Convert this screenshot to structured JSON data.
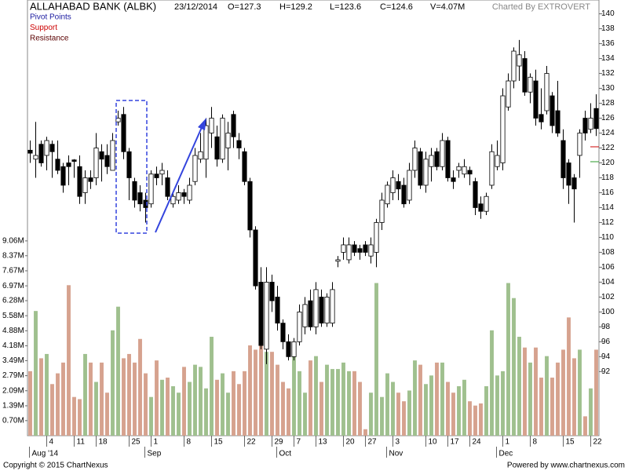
{
  "chart_data": {
    "type": "candlestick",
    "title": "ALLAHABAD BANK (ALBK)",
    "date": "23/12/2014",
    "stats": [
      "O=127.3",
      "H=129.2",
      "L=123.6",
      "C=124.6",
      "V=4.07M"
    ],
    "credit": "Charted By EXTROVERT",
    "legend": [
      {
        "name": "Pivot Points",
        "color": "#1a1aa0"
      },
      {
        "name": "Support",
        "color": "#cc0000"
      },
      {
        "name": "Resistance",
        "color": "#5a0000"
      }
    ],
    "categories": [
      null,
      null,
      null,
      "4",
      null,
      null,
      null,
      null,
      "11",
      null,
      null,
      null,
      "18",
      null,
      null,
      null,
      null,
      null,
      "25",
      null,
      null,
      null,
      "1",
      null,
      null,
      null,
      null,
      null,
      "8",
      null,
      null,
      null,
      null,
      "15",
      null,
      null,
      null,
      null,
      null,
      "22",
      null,
      null,
      null,
      null,
      "29",
      null,
      null,
      null,
      "7",
      null,
      null,
      null,
      "13",
      null,
      null,
      null,
      null,
      "20",
      null,
      null,
      null,
      "27",
      null,
      null,
      null,
      null,
      "3",
      null,
      null,
      null,
      null,
      null,
      "10",
      null,
      null,
      null,
      "17",
      null,
      null,
      null,
      "24",
      null,
      null,
      null,
      null,
      null,
      "1",
      null,
      null,
      null,
      null,
      "8",
      null,
      null,
      null,
      null,
      null,
      "15",
      null,
      null,
      null,
      null,
      "22",
      null
    ],
    "months": [
      null,
      "Aug '14",
      null,
      null,
      null,
      null,
      null,
      null,
      null,
      null,
      null,
      null,
      null,
      null,
      null,
      null,
      null,
      null,
      null,
      null,
      null,
      null,
      "Sep",
      null,
      null,
      null,
      null,
      null,
      null,
      null,
      null,
      null,
      null,
      null,
      null,
      null,
      null,
      null,
      null,
      null,
      null,
      null,
      null,
      null,
      null,
      null,
      "Oct",
      null,
      null,
      null,
      null,
      null,
      null,
      null,
      null,
      null,
      null,
      null,
      null,
      null,
      null,
      null,
      null,
      null,
      null,
      null,
      "Nov",
      null,
      null,
      null,
      null,
      null,
      null,
      null,
      null,
      null,
      null,
      null,
      null,
      null,
      null,
      null,
      null,
      null,
      null,
      null,
      "Dec",
      null,
      null,
      null,
      null,
      null,
      null,
      null,
      null,
      null,
      null,
      null,
      null,
      null,
      null,
      null,
      null,
      null
    ],
    "open": [
      121.7,
      120.5,
      122.5,
      121,
      122.5,
      120.5,
      119.5,
      120,
      120.4,
      119.5,
      116,
      118,
      118,
      121.5,
      121,
      119,
      125.5,
      126.5,
      121.5,
      117.5,
      116,
      115,
      114.5,
      118.5,
      118.5,
      118,
      114.5,
      115,
      116,
      115,
      117.5,
      120.5,
      120.5,
      124,
      123.5,
      120.5,
      122,
      126.5,
      123,
      121.5,
      117.5,
      111,
      104,
      95,
      104,
      102,
      98.5,
      96,
      94,
      96,
      98,
      101.5,
      98,
      102,
      98.5,
      98.5,
      106.8,
      108,
      107,
      109,
      108.5,
      109,
      107.5,
      108,
      112,
      114.5,
      116,
      117.5,
      117,
      115,
      119,
      121.5,
      117,
      119.5,
      121.5,
      119.5,
      123,
      118,
      119,
      118.5,
      119,
      117.5,
      114.5,
      113.5,
      117,
      119.5,
      120,
      127.5,
      131,
      133,
      134,
      129.5,
      131,
      126.5,
      127,
      129,
      127,
      123,
      120,
      118,
      121,
      126,
      124.5,
      127.3
    ],
    "high": [
      123,
      125.5,
      123,
      123.5,
      123,
      123,
      120,
      121,
      120.5,
      121,
      119,
      119,
      124,
      122.5,
      122.5,
      124,
      127,
      127.5,
      122,
      118,
      117,
      116,
      119,
      119.5,
      120,
      119,
      116,
      117,
      116.5,
      118,
      122,
      124,
      126,
      127.5,
      125,
      126.5,
      125.5,
      127,
      124,
      122,
      118,
      111.5,
      106,
      106,
      105,
      103.5,
      99,
      97,
      96.5,
      101,
      102,
      103,
      104,
      103,
      102.5,
      104,
      107.5,
      110,
      110,
      109.5,
      109,
      109.5,
      110,
      112.5,
      116,
      117.5,
      119,
      118.5,
      118,
      120,
      123,
      122,
      121.5,
      122,
      122,
      124,
      123.5,
      119,
      120,
      120.5,
      119.5,
      118,
      115.5,
      116,
      122.5,
      123,
      130,
      132,
      135.5,
      136.5,
      135,
      132,
      132.5,
      130,
      133,
      129.5,
      131,
      124.5,
      120.5,
      118.5,
      124.5,
      127,
      128,
      129.2
    ],
    "low": [
      120,
      118,
      119.5,
      119,
      118,
      118.5,
      116,
      117,
      118,
      114.5,
      114.5,
      116.5,
      117,
      117.5,
      118.5,
      119,
      125,
      120.5,
      115,
      114,
      113.5,
      112,
      114,
      117,
      117,
      115,
      114,
      114.5,
      114.5,
      114.5,
      117,
      120,
      118,
      122,
      119.5,
      120,
      119,
      122,
      120.5,
      117,
      110,
      103,
      95,
      93,
      100,
      97.5,
      95,
      93.5,
      93.5,
      95.5,
      97,
      97.5,
      97,
      98,
      98,
      98,
      106,
      107,
      106.5,
      107.5,
      107,
      107.5,
      106.5,
      106,
      111,
      114,
      115,
      115,
      114,
      114.5,
      118,
      116.5,
      116,
      117.5,
      119,
      119,
      117.5,
      116.5,
      118,
      118,
      117,
      113,
      112.5,
      113,
      116.5,
      119,
      119,
      127,
      130,
      131,
      129,
      128,
      125,
      124.5,
      126.5,
      124,
      123.5,
      116.5,
      114.5,
      112,
      118,
      123,
      124,
      123.6
    ],
    "close": [
      121.3,
      121,
      120,
      123,
      121.5,
      119,
      117,
      119.5,
      120.2,
      115.5,
      118,
      117.5,
      122,
      120.5,
      119.5,
      123,
      126,
      121.5,
      118,
      115,
      114.5,
      114,
      118.5,
      118,
      119,
      115.5,
      115.5,
      116,
      115.5,
      117,
      121,
      121.5,
      125,
      126,
      120.5,
      126,
      124,
      123.5,
      122,
      117.5,
      111,
      103.5,
      95.5,
      104,
      101.5,
      98.5,
      96,
      94,
      96,
      100,
      101,
      98,
      103,
      98.5,
      102,
      103,
      107,
      109,
      109,
      108,
      108,
      108,
      109,
      112,
      115,
      117,
      118,
      116.5,
      114.5,
      119,
      122,
      117,
      120.5,
      121,
      119.5,
      123,
      118,
      117.5,
      119.5,
      119.5,
      118.5,
      114,
      113.5,
      115.5,
      121.5,
      121,
      129,
      131,
      135,
      134.5,
      129.5,
      131.5,
      126,
      125.5,
      132,
      125,
      124,
      118,
      117,
      116.5,
      124,
      124,
      126,
      124.6
    ],
    "volume": [
      3.0,
      5.8,
      3.6,
      3.8,
      2.4,
      2.9,
      3.4,
      7.0,
      1.8,
      1.7,
      3.8,
      3.4,
      2.5,
      3.4,
      2.0,
      4.9,
      6.0,
      3.6,
      3.8,
      3.4,
      4.5,
      2.9,
      1.8,
      3.5,
      2.6,
      2.7,
      2.3,
      2.0,
      3.2,
      2.5,
      3.3,
      3.2,
      2.2,
      4.6,
      2.6,
      2.9,
      2.0,
      3.0,
      2.4,
      3.0,
      4.2,
      4.0,
      5.0,
      3.9,
      3.9,
      3.3,
      2.5,
      2.2,
      3.8,
      3.0,
      2.0,
      3.5,
      3.7,
      2.5,
      3.3,
      3.1,
      3.1,
      3.4,
      3.0,
      3.0,
      2.5,
      0.3,
      2.0,
      7.1,
      1.8,
      2.9,
      2.5,
      2.0,
      1.6,
      2.1,
      3.5,
      3.3,
      2.4,
      2.8,
      3.4,
      3.4,
      2.5,
      2.0,
      2.3,
      2.6,
      1.6,
      1.4,
      1.5,
      2.3,
      4.9,
      2.8,
      3.0,
      7.1,
      6.4,
      4.6,
      4.1,
      3.4,
      4.1,
      2.7,
      3.7,
      2.7,
      3.4,
      4.0,
      5.5,
      3.6,
      4.0,
      0.9,
      2.2,
      4.0
    ],
    "ylim": [
      83.4,
      140.8
    ],
    "yticks": [
      140,
      138,
      136,
      134,
      132,
      130,
      128,
      126,
      124,
      122,
      120,
      118,
      116,
      114,
      112,
      110,
      108,
      106,
      104,
      102,
      100,
      98,
      96,
      94,
      92
    ],
    "volume_ylim": [
      0,
      19.9
    ],
    "volume_yticks": [
      {
        "value": 9.06,
        "label": "9.06M"
      },
      {
        "value": 8.37,
        "label": "8.37M"
      },
      {
        "value": 7.67,
        "label": "7.67M"
      },
      {
        "value": 6.97,
        "label": "6.97M"
      },
      {
        "value": 6.28,
        "label": "6.28M"
      },
      {
        "value": 5.58,
        "label": "5.58M"
      },
      {
        "value": 4.88,
        "label": "4.88M"
      },
      {
        "value": 4.18,
        "label": "4.18M"
      },
      {
        "value": 3.49,
        "label": "3.49M"
      },
      {
        "value": 2.79,
        "label": "2.79M"
      },
      {
        "value": 2.09,
        "label": "2.09M"
      },
      {
        "value": 1.39,
        "label": "1.39M"
      },
      {
        "value": 0.7,
        "label": "0.70M"
      }
    ],
    "up_color": "#ffffff",
    "down_color": "#000000",
    "volume_up_color": "#9fc08e",
    "volume_down_color": "#d6a28e",
    "footer_left": "Copyright © 2015 ChartNexus",
    "footer_right": "Powered by www.chartnexus.com"
  }
}
